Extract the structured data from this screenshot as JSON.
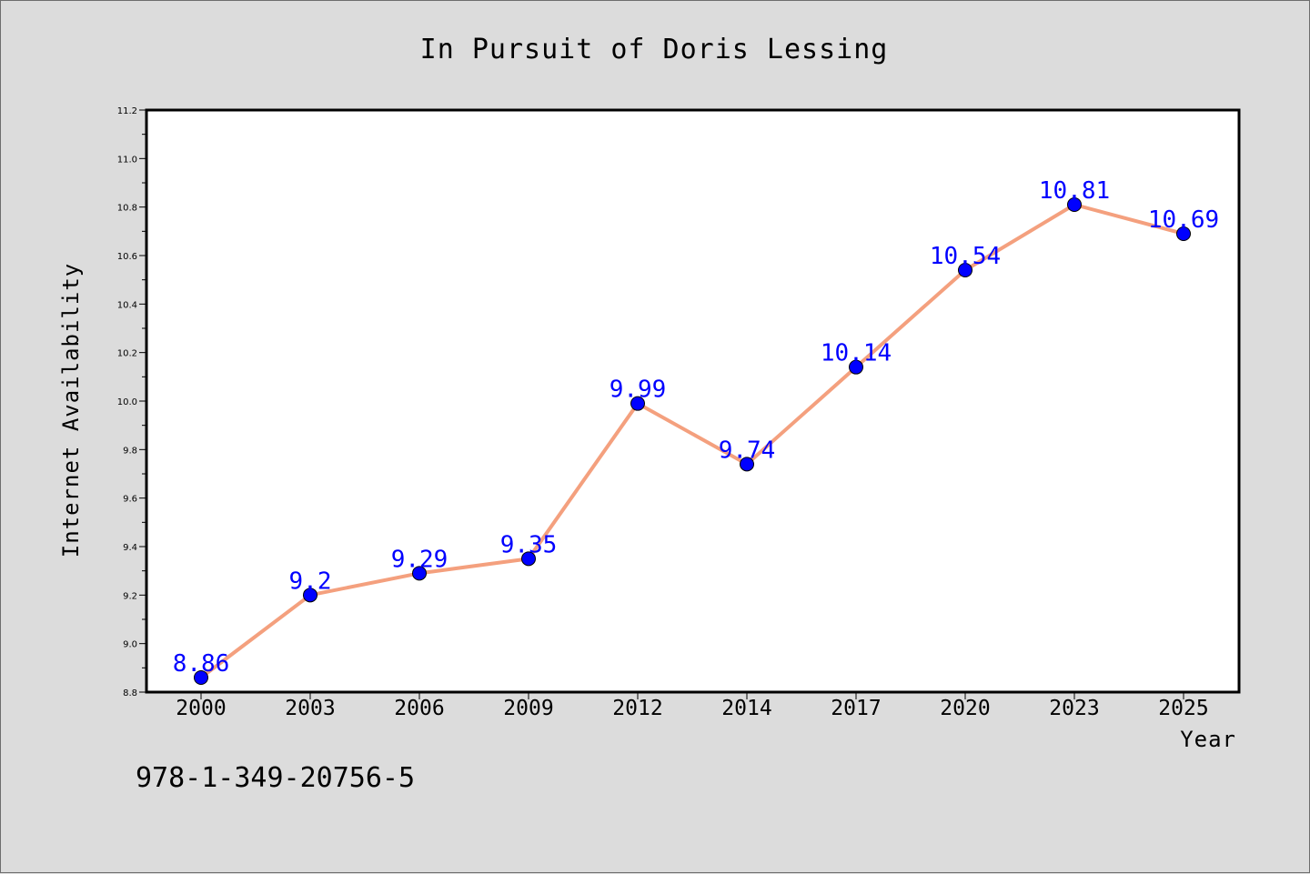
{
  "footer": {
    "isbn": "978-1-349-20756-5"
  },
  "chart_data": {
    "type": "line",
    "title": "In Pursuit of Doris Lessing",
    "xlabel": "Year",
    "ylabel": "Internet Availability",
    "categories": [
      "2000",
      "2003",
      "2006",
      "2009",
      "2012",
      "2014",
      "2017",
      "2020",
      "2023",
      "2025"
    ],
    "series": [
      {
        "values": [
          8.86,
          9.2,
          9.29,
          9.35,
          9.99,
          9.74,
          10.14,
          10.54,
          10.81,
          10.69
        ]
      }
    ],
    "data_labels": [
      "8.86",
      "9.2",
      "9.29",
      "9.35",
      "9.99",
      "9.74",
      "10.14",
      "10.54",
      "10.81",
      "10.69"
    ],
    "ylim": [
      8.8,
      11.2
    ],
    "y_ticks": [
      "8.8",
      "9.0",
      "9.2",
      "9.4",
      "9.6",
      "9.8",
      "10.0",
      "10.2",
      "10.4",
      "10.6",
      "10.8",
      "11.0",
      "11.2"
    ],
    "grid": false,
    "legend": "none",
    "colors": {
      "line": "#f4a07e",
      "marker": "#0000ff",
      "data_label": "#0000ff",
      "background": "#dcdcdc",
      "plot_background": "#ffffff"
    }
  }
}
